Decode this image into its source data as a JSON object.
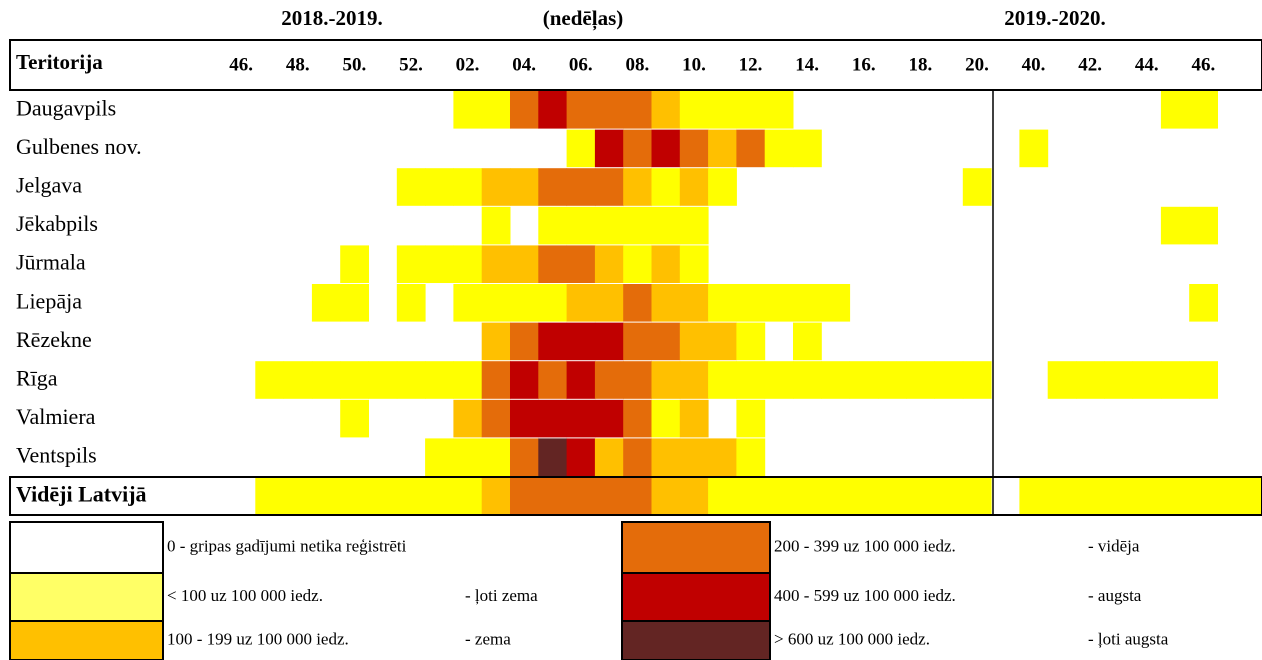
{
  "header": {
    "season_1": "2018.-2019.",
    "weeks_label": "(nedēļas)",
    "season_2": "2019.-2020."
  },
  "table": {
    "column_header": "Teritorija",
    "weeks": [
      "46.",
      "48.",
      "50.",
      "52.",
      "02.",
      "04.",
      "06.",
      "08.",
      "10.",
      "12.",
      "14.",
      "16.",
      "18.",
      "20.",
      "40.",
      "42.",
      "44.",
      "46."
    ],
    "level_colors": [
      "#ffffff",
      "#ffff00",
      "#ffc000",
      "#e46c0a",
      "#c00000",
      "#632523"
    ],
    "rows": [
      {
        "name": "Daugavpils",
        "levels": [
          0,
          0,
          0,
          0,
          0,
          0,
          0,
          0,
          1,
          1,
          3,
          4,
          3,
          3,
          3,
          2,
          1,
          1,
          1,
          1,
          0,
          0,
          0,
          0,
          0,
          0,
          0,
          0,
          0,
          0,
          0,
          0,
          0,
          1,
          1,
          0,
          0
        ]
      },
      {
        "name": "Gulbenes nov.",
        "levels": [
          0,
          0,
          0,
          0,
          0,
          0,
          0,
          0,
          0,
          0,
          0,
          0,
          1,
          4,
          3,
          4,
          3,
          2,
          3,
          1,
          1,
          0,
          0,
          0,
          0,
          0,
          0,
          0,
          1,
          0,
          0,
          0,
          0,
          0,
          0,
          0,
          0
        ]
      },
      {
        "name": "Jelgava",
        "levels": [
          0,
          0,
          0,
          0,
          0,
          0,
          1,
          1,
          1,
          2,
          2,
          3,
          3,
          3,
          2,
          1,
          2,
          1,
          0,
          0,
          0,
          0,
          0,
          0,
          0,
          0,
          1,
          0,
          0,
          0,
          0,
          0,
          0,
          0,
          0,
          0,
          0
        ]
      },
      {
        "name": "Jēkabpils",
        "levels": [
          0,
          0,
          0,
          0,
          0,
          0,
          0,
          0,
          0,
          1,
          0,
          1,
          1,
          1,
          1,
          1,
          1,
          0,
          0,
          0,
          0,
          0,
          0,
          0,
          0,
          0,
          0,
          0,
          0,
          0,
          0,
          0,
          0,
          1,
          1,
          0,
          0
        ]
      },
      {
        "name": "Jūrmala",
        "levels": [
          0,
          0,
          0,
          0,
          1,
          0,
          1,
          1,
          1,
          2,
          2,
          3,
          3,
          2,
          1,
          2,
          1,
          0,
          0,
          0,
          0,
          0,
          0,
          0,
          0,
          0,
          0,
          0,
          0,
          0,
          0,
          0,
          0,
          0,
          0,
          0,
          0
        ]
      },
      {
        "name": "Liepāja",
        "levels": [
          0,
          0,
          0,
          1,
          1,
          0,
          1,
          0,
          1,
          1,
          1,
          1,
          2,
          2,
          3,
          2,
          2,
          1,
          1,
          1,
          1,
          1,
          0,
          0,
          0,
          0,
          0,
          0,
          0,
          0,
          0,
          0,
          0,
          0,
          1,
          0,
          0
        ]
      },
      {
        "name": "Rēzekne",
        "levels": [
          0,
          0,
          0,
          0,
          0,
          0,
          0,
          0,
          0,
          2,
          3,
          4,
          4,
          4,
          3,
          3,
          2,
          2,
          1,
          0,
          1,
          0,
          0,
          0,
          0,
          0,
          0,
          0,
          0,
          0,
          0,
          0,
          0,
          0,
          0,
          0,
          0
        ]
      },
      {
        "name": "Rīga",
        "levels": [
          0,
          1,
          1,
          1,
          1,
          1,
          1,
          1,
          1,
          3,
          4,
          3,
          4,
          3,
          3,
          2,
          2,
          1,
          1,
          1,
          1,
          1,
          1,
          1,
          1,
          1,
          1,
          0,
          0,
          1,
          1,
          1,
          1,
          1,
          1,
          0,
          0
        ]
      },
      {
        "name": "Valmiera",
        "levels": [
          0,
          0,
          0,
          0,
          1,
          0,
          0,
          0,
          2,
          3,
          4,
          4,
          4,
          4,
          3,
          1,
          2,
          0,
          1,
          0,
          0,
          0,
          0,
          0,
          0,
          0,
          0,
          0,
          0,
          0,
          0,
          0,
          0,
          0,
          0,
          0,
          0
        ]
      },
      {
        "name": "Ventspils",
        "levels": [
          0,
          0,
          0,
          0,
          0,
          0,
          0,
          1,
          1,
          1,
          3,
          5,
          4,
          2,
          3,
          2,
          2,
          2,
          1,
          0,
          0,
          0,
          0,
          0,
          0,
          0,
          0,
          0,
          0,
          0,
          0,
          0,
          0,
          0,
          0,
          0,
          0
        ]
      }
    ],
    "summary": {
      "name": "Vidēji Latvijā",
      "levels": [
        0,
        1,
        1,
        1,
        1,
        1,
        1,
        1,
        1,
        2,
        3,
        3,
        3,
        3,
        3,
        2,
        2,
        1,
        1,
        1,
        1,
        1,
        1,
        1,
        1,
        1,
        1,
        0,
        1,
        1,
        1,
        1,
        1,
        1,
        1,
        1,
        1
      ]
    }
  },
  "legend": [
    {
      "range": "0 - gripas gadījumi netika reģistrēti",
      "color": "#ffffff"
    },
    {
      "range": "< 100 uz 100 000 iedz.",
      "grade": "- ļoti zema",
      "color": "#ffff66"
    },
    {
      "range": "100 - 199 uz 100 000 iedz.",
      "grade": "- zema",
      "color": "#ffc000"
    },
    {
      "range": "200 - 399 uz 100 000 iedz.",
      "grade": "- vidēja",
      "color": "#e46c0a"
    },
    {
      "range": "400 - 599 uz 100 000 iedz.",
      "grade": "- augsta",
      "color": "#c00000"
    },
    {
      "range": "> 600 uz 100 000 iedz.",
      "grade": "- ļoti augsta",
      "color": "#632523"
    }
  ]
}
